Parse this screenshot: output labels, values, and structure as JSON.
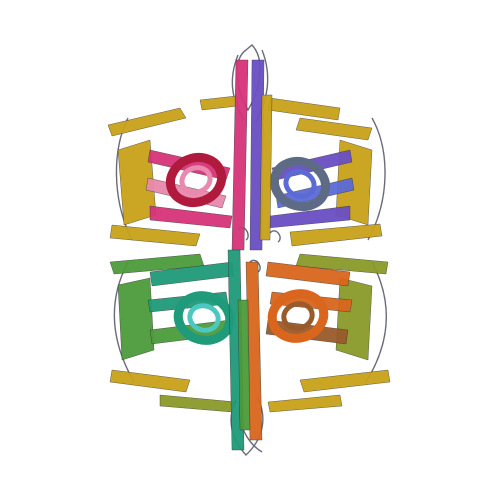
{
  "image": {
    "subject": "protein-ribbon-structure",
    "background": "#ffffff"
  },
  "palette": {
    "gold": "#c9a21a",
    "magenta": "#d6337a",
    "pink": "#e889ad",
    "crimson": "#b01a3c",
    "purple": "#6a4fc4",
    "blue": "#5b6bd6",
    "slate": "#5d6b86",
    "teal": "#1f9a7a",
    "green": "#4c9a3a",
    "olive": "#8a9a2a",
    "orange": "#d9661c",
    "brown": "#9a5a2a",
    "cyan": "#4ec7c0",
    "coil": "#6a6a7a"
  }
}
